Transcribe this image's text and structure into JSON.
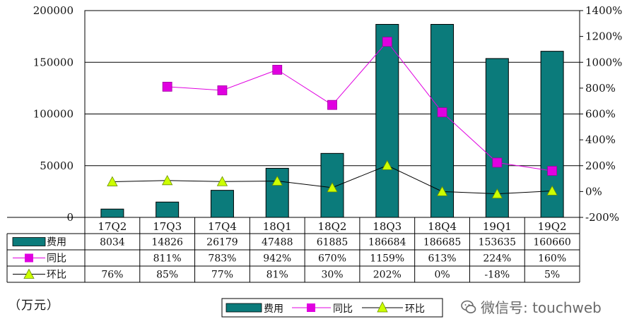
{
  "chart_data": {
    "type": "bar",
    "categories": [
      "17Q2",
      "17Q3",
      "17Q4",
      "18Q1",
      "18Q2",
      "18Q3",
      "18Q4",
      "19Q1",
      "19Q2"
    ],
    "series": [
      {
        "name": "费用",
        "type": "bar",
        "axis": "left",
        "color": "#0b7b7b",
        "values": [
          8034,
          14826,
          26179,
          47488,
          61885,
          186684,
          186685,
          153635,
          160660
        ]
      },
      {
        "name": "同比",
        "type": "line",
        "axis": "right",
        "color": "#e000e0",
        "values": [
          null,
          811,
          783,
          942,
          670,
          1159,
          613,
          224,
          160
        ]
      },
      {
        "name": "环比",
        "type": "line",
        "axis": "right",
        "color": "#000000",
        "marker_color": "#ccff00",
        "values": [
          76,
          85,
          77,
          81,
          30,
          202,
          0,
          -18,
          5
        ]
      }
    ],
    "table": {
      "rows": [
        {
          "name": "费用",
          "cells": [
            "8034",
            "14826",
            "26179",
            "47488",
            "61885",
            "186684",
            "186685",
            "153635",
            "160660"
          ]
        },
        {
          "name": "同比",
          "cells": [
            "",
            "811%",
            "783%",
            "942%",
            "670%",
            "1159%",
            "613%",
            "224%",
            "160%"
          ]
        },
        {
          "name": "环比",
          "cells": [
            "76%",
            "85%",
            "77%",
            "81%",
            "30%",
            "202%",
            "0%",
            "-18%",
            "5%"
          ]
        }
      ]
    },
    "left_axis": {
      "min": 0,
      "max": 200000,
      "ticks": [
        "200000",
        "150000",
        "100000",
        "50000",
        "0"
      ]
    },
    "right_axis": {
      "min": -200,
      "max": 1400,
      "ticks": [
        "1400%",
        "1200%",
        "1000%",
        "800%",
        "600%",
        "400%",
        "200%",
        "0%",
        "-200%"
      ]
    },
    "ylim": [
      0,
      200000
    ],
    "y2lim": [
      -200,
      1400
    ],
    "grid": true,
    "legend_position": "bottom"
  },
  "unit_label": "（万元）",
  "watermark": {
    "text": "微信号: touchweb",
    "icon": "wechat-icon"
  }
}
